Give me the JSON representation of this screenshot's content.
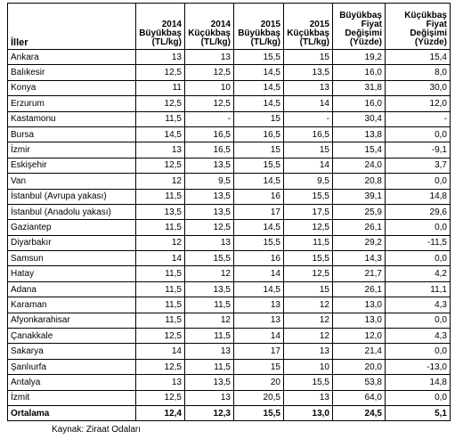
{
  "table": {
    "columns": [
      "İller",
      "2014 Büyükbaş (TL/kg)",
      "2014 Küçükbaş (TL/kg)",
      "2015 Büyükbaş (TL/kg)",
      "2015 Küçükbaş (TL/kg)",
      "Büyükbaş Fiyat Değişimi (Yüzde)",
      "Küçükbaş Fiyat Değişimi (Yüzde)"
    ],
    "rows": [
      [
        "Ankara",
        "13",
        "13",
        "15,5",
        "15",
        "19,2",
        "15,4"
      ],
      [
        "Balıkesir",
        "12,5",
        "12,5",
        "14,5",
        "13,5",
        "16,0",
        "8,0"
      ],
      [
        "Konya",
        "11",
        "10",
        "14,5",
        "13",
        "31,8",
        "30,0"
      ],
      [
        "Erzurum",
        "12,5",
        "12,5",
        "14,5",
        "14",
        "16,0",
        "12,0"
      ],
      [
        "Kastamonu",
        "11,5",
        "-",
        "15",
        "-",
        "30,4",
        "-"
      ],
      [
        "Bursa",
        "14,5",
        "16,5",
        "16,5",
        "16,5",
        "13,8",
        "0,0"
      ],
      [
        "İzmir",
        "13",
        "16,5",
        "15",
        "15",
        "15,4",
        "-9,1"
      ],
      [
        "Eskişehir",
        "12,5",
        "13,5",
        "15,5",
        "14",
        "24,0",
        "3,7"
      ],
      [
        "Van",
        "12",
        "9,5",
        "14,5",
        "9,5",
        "20,8",
        "0,0"
      ],
      [
        "İstanbul (Avrupa yakası)",
        "11,5",
        "13,5",
        "16",
        "15,5",
        "39,1",
        "14,8"
      ],
      [
        "İstanbul (Anadolu yakası)",
        "13,5",
        "13,5",
        "17",
        "17,5",
        "25,9",
        "29,6"
      ],
      [
        "Gaziantep",
        "11,5",
        "12,5",
        "14,5",
        "12,5",
        "26,1",
        "0,0"
      ],
      [
        "Diyarbakır",
        "12",
        "13",
        "15,5",
        "11,5",
        "29,2",
        "-11,5"
      ],
      [
        "Samsun",
        "14",
        "15,5",
        "16",
        "15,5",
        "14,3",
        "0,0"
      ],
      [
        "Hatay",
        "11,5",
        "12",
        "14",
        "12,5",
        "21,7",
        "4,2"
      ],
      [
        "Adana",
        "11,5",
        "13,5",
        "14,5",
        "15",
        "26,1",
        "11,1"
      ],
      [
        "Karaman",
        "11,5",
        "11,5",
        "13",
        "12",
        "13,0",
        "4,3"
      ],
      [
        "Afyonkarahisar",
        "11,5",
        "12",
        "13",
        "12",
        "13,0",
        "0,0"
      ],
      [
        "Çanakkale",
        "12,5",
        "11,5",
        "14",
        "12",
        "12,0",
        "4,3"
      ],
      [
        "Sakarya",
        "14",
        "13",
        "17",
        "13",
        "21,4",
        "0,0"
      ],
      [
        "Şanlıurfa",
        "12,5",
        "11,5",
        "15",
        "10",
        "20,0",
        "-13,0"
      ],
      [
        "Antalya",
        "13",
        "13,5",
        "20",
        "15,5",
        "53,8",
        "14,8"
      ],
      [
        "İzmit",
        "12,5",
        "13",
        "20,5",
        "13",
        "64,0",
        "0,0"
      ]
    ],
    "total": [
      "Ortalama",
      "12,4",
      "12,3",
      "15,5",
      "13,0",
      "24,5",
      "5,1"
    ]
  },
  "source": "Kaynak: Ziraat Odaları"
}
